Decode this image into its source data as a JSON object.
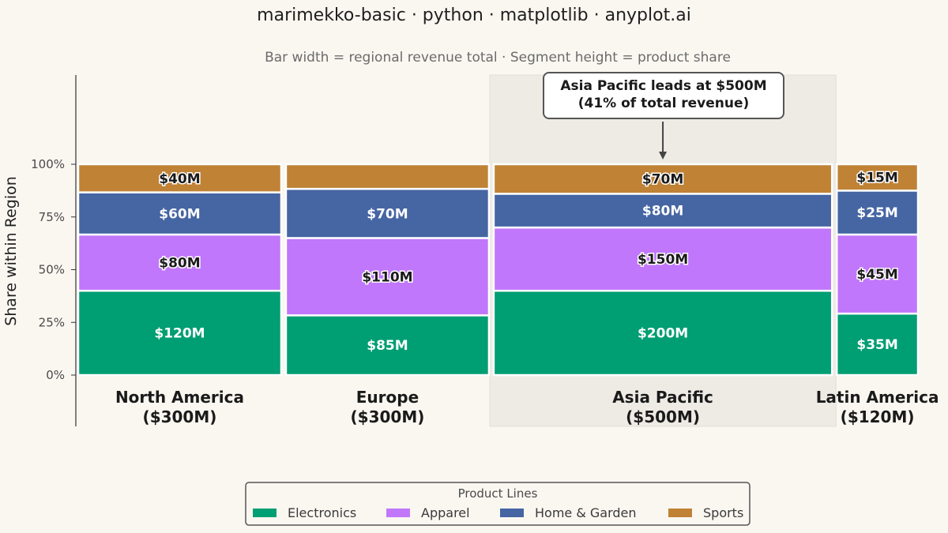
{
  "title": "marimekko-basic · python · matplotlib · anyplot.ai",
  "subtitle": "Bar width = regional revenue total · Segment height = product share",
  "colors": {
    "Electronics": "#009E73",
    "Apparel": "#C077FB",
    "Home & Garden": "#4565A3",
    "Sports": "#C08235",
    "background": "#FAF7F1",
    "highlight": "#EEEBE5"
  },
  "chart_data": {
    "type": "marimekko",
    "ylabel": "Share within Region",
    "yticks": [
      "0%",
      "25%",
      "50%",
      "75%",
      "100%"
    ],
    "ylim": [
      0,
      100
    ],
    "categories": [
      {
        "name": "North America",
        "total_label": "($300M)",
        "total": 300
      },
      {
        "name": "Europe",
        "total_label": "($300M)",
        "total": 300
      },
      {
        "name": "Asia Pacific",
        "total_label": "($500M)",
        "total": 500
      },
      {
        "name": "Latin America",
        "total_label": "($120M)",
        "total": 120
      }
    ],
    "series": [
      {
        "name": "Electronics",
        "values": [
          120,
          85,
          200,
          35
        ],
        "labels": [
          "$120M",
          "$85M",
          "$200M",
          "$35M"
        ]
      },
      {
        "name": "Apparel",
        "values": [
          80,
          110,
          150,
          45
        ],
        "labels": [
          "$80M",
          "$110M",
          "$150M",
          "$45M"
        ]
      },
      {
        "name": "Home & Garden",
        "values": [
          60,
          70,
          80,
          25
        ],
        "labels": [
          "$60M",
          "$70M",
          "$80M",
          "$25M"
        ]
      },
      {
        "name": "Sports",
        "values": [
          40,
          35,
          70,
          15
        ],
        "labels": [
          "$40M",
          "",
          "$70M",
          "$15M"
        ]
      }
    ],
    "highlight_category": "Asia Pacific",
    "annotation": [
      "Asia Pacific leads at $500M",
      "(41% of total revenue)"
    ],
    "legend": {
      "title": "Product Lines",
      "entries": [
        "Electronics",
        "Apparel",
        "Home & Garden",
        "Sports"
      ],
      "placement": "bottom-center"
    }
  }
}
